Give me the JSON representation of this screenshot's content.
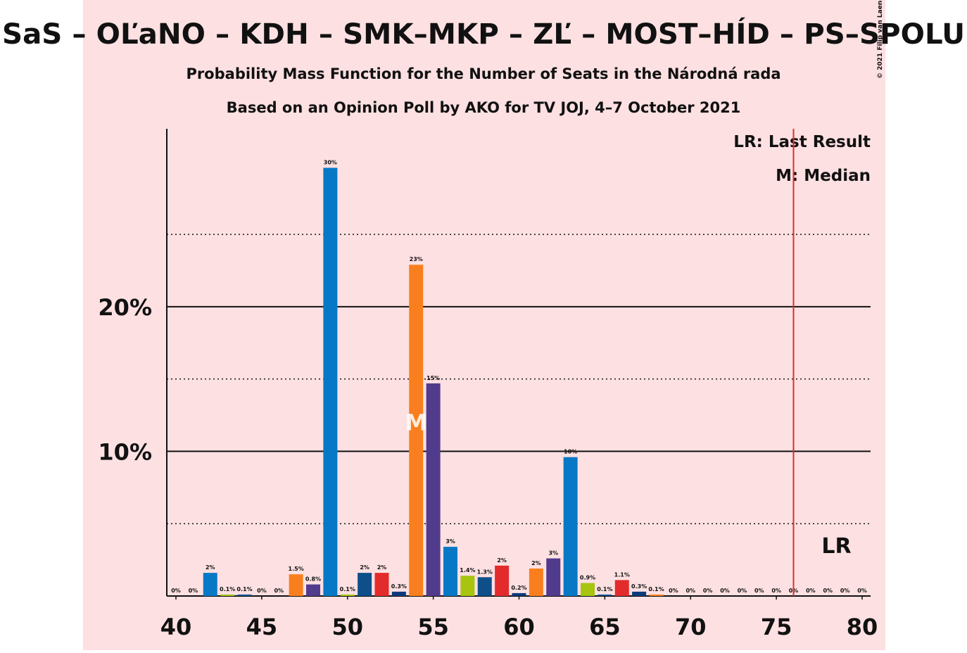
{
  "chart_data": {
    "type": "bar",
    "title": "SaS – OĽaNO – KDH – SMK–MKP – ZĽ – MOST–HÍD – PS–SPOLU",
    "subtitle": "Probability Mass Function for the Number of Seats in the Národná rada",
    "subtitle2": "Based on an Opinion Poll by AKO for TV JOJ, 4–7 October 2021",
    "copyright": "© 2021 Filip van Laenen",
    "legend": [
      "LR: Last Result",
      "M: Median"
    ],
    "categories": [
      40,
      41,
      42,
      43,
      44,
      45,
      46,
      47,
      48,
      49,
      50,
      51,
      52,
      53,
      54,
      55,
      56,
      57,
      58,
      59,
      60,
      61,
      62,
      63,
      64,
      65,
      66,
      67,
      68,
      69,
      70,
      71,
      72,
      73,
      74,
      75,
      76,
      77,
      78,
      79,
      80
    ],
    "values": [
      0,
      0,
      1.6,
      0.1,
      0.1,
      0,
      0,
      1.5,
      0.8,
      29.6,
      0.1,
      1.6,
      1.6,
      0.3,
      22.9,
      14.7,
      3.4,
      1.4,
      1.3,
      2.1,
      0.2,
      1.9,
      2.6,
      9.6,
      0.9,
      0.1,
      1.1,
      0.3,
      0.1,
      0,
      0,
      0,
      0,
      0,
      0,
      0,
      0,
      0,
      0,
      0,
      0
    ],
    "value_labels": [
      "0%",
      "0%",
      "2%",
      "0.1%",
      "0.1%",
      "0%",
      "0%",
      "1.5%",
      "0.8%",
      "30%",
      "0.1%",
      "2%",
      "2%",
      "0.3%",
      "23%",
      "15%",
      "3%",
      "1.4%",
      "1.3%",
      "2%",
      "0.2%",
      "2%",
      "3%",
      "10%",
      "0.9%",
      "0.1%",
      "1.1%",
      "0.3%",
      "0.1%",
      "0%",
      "0%",
      "0%",
      "0%",
      "0%",
      "0%",
      "0%",
      "0%",
      "0%",
      "0%",
      "0%",
      "0%"
    ],
    "color_cycle": [
      "#f97f1e",
      "#513b8c",
      "#0778c5",
      "#a7c40f",
      "#0e4f8a",
      "#e32b2b",
      "#0b3a7a"
    ],
    "xlim": [
      40,
      80
    ],
    "xticks": [
      40,
      45,
      50,
      55,
      60,
      65,
      70,
      75,
      80
    ],
    "ylim": [
      0,
      32.3
    ],
    "yticks": [
      {
        "value": 10,
        "label": "10%"
      },
      {
        "value": 20,
        "label": "20%"
      }
    ],
    "minor_gridlines": [
      5,
      15,
      25
    ],
    "median": 54,
    "median_label": "M",
    "last_result": 76,
    "last_result_label": "LR"
  }
}
